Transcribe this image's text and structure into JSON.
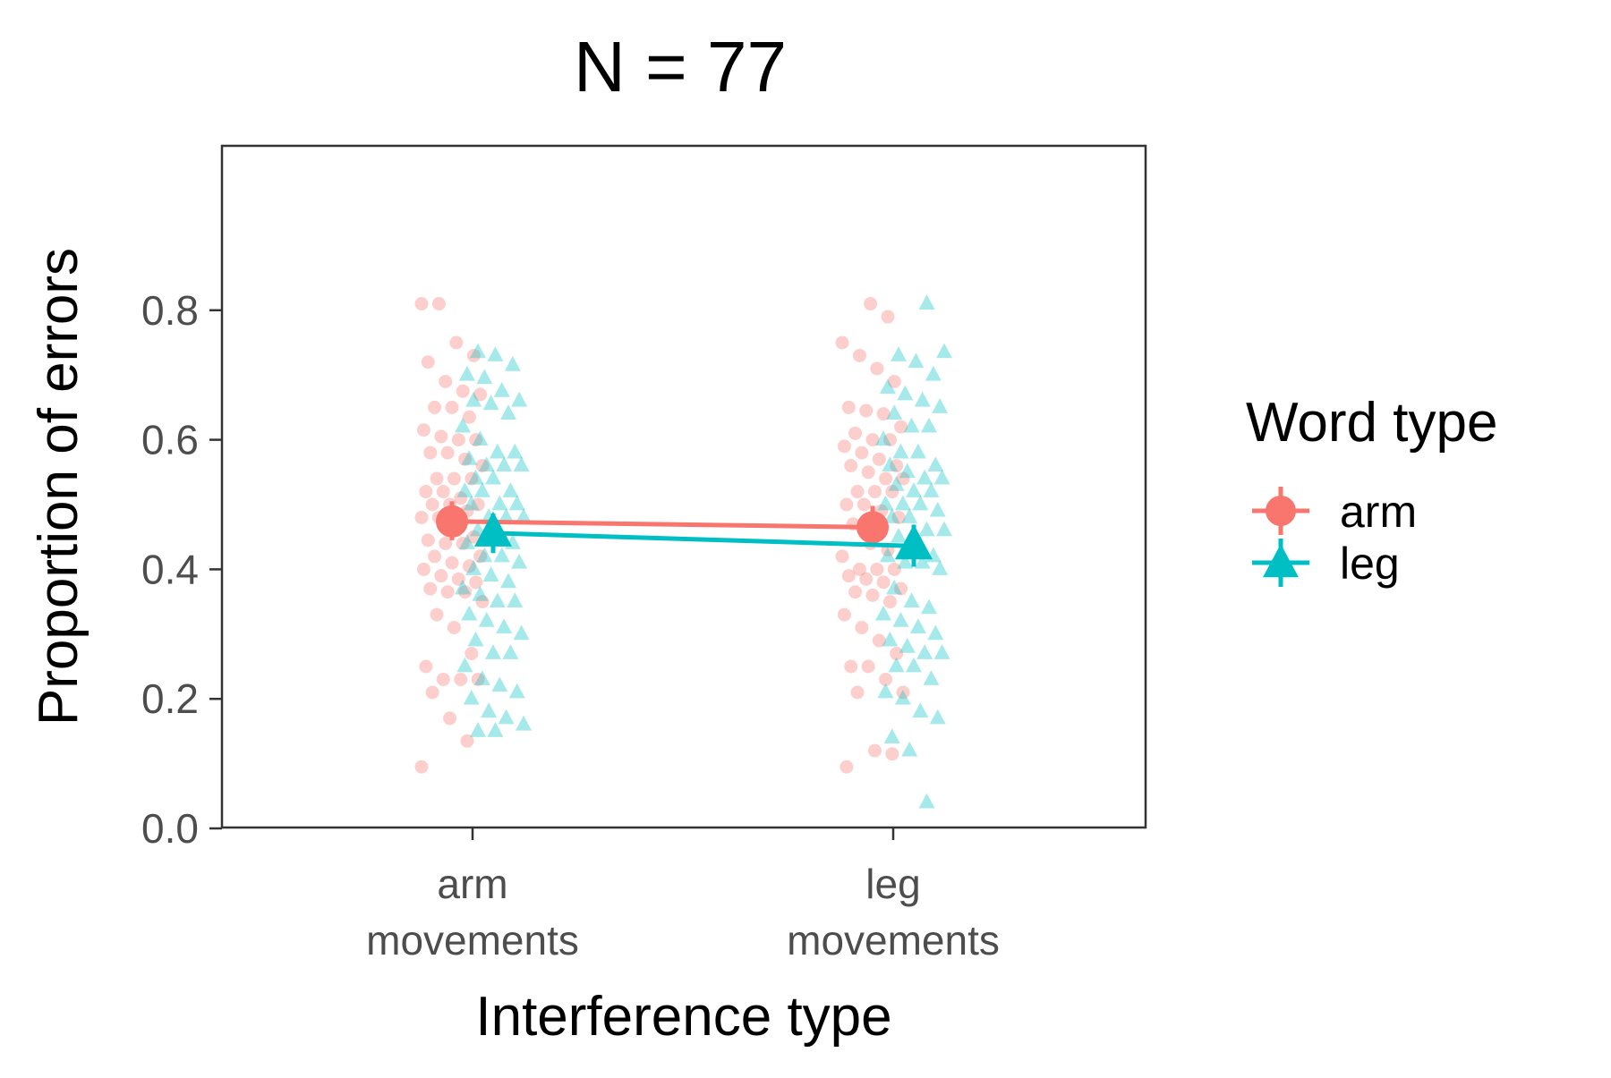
{
  "chart_data": {
    "type": "scatter",
    "title": "N = 77",
    "xlabel": "Interference type",
    "ylabel": "Proportion of errors",
    "categories": [
      [
        "arm",
        "movements"
      ],
      [
        "leg",
        "movements"
      ]
    ],
    "ylim": [
      0.0,
      0.845
    ],
    "yticks": [
      0.0,
      0.2,
      0.4,
      0.6,
      0.8
    ],
    "ytick_labels": [
      "0.0",
      "0.2",
      "0.4",
      "0.6",
      "0.8"
    ],
    "grid": false,
    "legend": {
      "title": "Word type",
      "placement": "right",
      "entries": [
        "arm",
        "leg"
      ]
    },
    "series": [
      {
        "name": "arm",
        "color": "#F8766D",
        "marker": "circle",
        "means": [
          0.474,
          0.465
        ],
        "ci_low": [
          0.445,
          0.436
        ],
        "ci_high": [
          0.505,
          0.498
        ],
        "points": [
          [
            0.81,
            0.81,
            0.75,
            0.73,
            0.72,
            0.69,
            0.675,
            0.67,
            0.65,
            0.65,
            0.635,
            0.615,
            0.605,
            0.6,
            0.6,
            0.58,
            0.58,
            0.57,
            0.56,
            0.54,
            0.54,
            0.54,
            0.52,
            0.52,
            0.51,
            0.5,
            0.5,
            0.5,
            0.49,
            0.48,
            0.48,
            0.46,
            0.45,
            0.445,
            0.44,
            0.44,
            0.42,
            0.42,
            0.41,
            0.405,
            0.4,
            0.39,
            0.385,
            0.38,
            0.37,
            0.365,
            0.365,
            0.35,
            0.33,
            0.31,
            0.27,
            0.25,
            0.23,
            0.23,
            0.23,
            0.21,
            0.17,
            0.135,
            0.095
          ],
          [
            0.81,
            0.79,
            0.75,
            0.73,
            0.71,
            0.69,
            0.65,
            0.645,
            0.64,
            0.62,
            0.61,
            0.6,
            0.6,
            0.59,
            0.58,
            0.57,
            0.56,
            0.56,
            0.55,
            0.54,
            0.54,
            0.52,
            0.52,
            0.52,
            0.5,
            0.5,
            0.49,
            0.48,
            0.47,
            0.44,
            0.43,
            0.42,
            0.4,
            0.4,
            0.4,
            0.39,
            0.385,
            0.38,
            0.37,
            0.365,
            0.36,
            0.35,
            0.33,
            0.31,
            0.29,
            0.27,
            0.25,
            0.25,
            0.23,
            0.21,
            0.21,
            0.12,
            0.115,
            0.095
          ]
        ]
      },
      {
        "name": "leg",
        "color": "#00BFC4",
        "marker": "triangle",
        "means": [
          0.456,
          0.436
        ],
        "ci_low": [
          0.425,
          0.404
        ],
        "ci_high": [
          0.486,
          0.469
        ],
        "points": [
          [
            0.735,
            0.73,
            0.715,
            0.7,
            0.695,
            0.675,
            0.66,
            0.66,
            0.655,
            0.64,
            0.62,
            0.6,
            0.58,
            0.58,
            0.57,
            0.56,
            0.56,
            0.56,
            0.54,
            0.54,
            0.52,
            0.52,
            0.52,
            0.5,
            0.5,
            0.5,
            0.48,
            0.48,
            0.48,
            0.46,
            0.46,
            0.44,
            0.44,
            0.42,
            0.42,
            0.41,
            0.4,
            0.39,
            0.38,
            0.37,
            0.36,
            0.35,
            0.35,
            0.33,
            0.32,
            0.31,
            0.3,
            0.29,
            0.27,
            0.27,
            0.25,
            0.23,
            0.22,
            0.21,
            0.2,
            0.18,
            0.17,
            0.16,
            0.15,
            0.15
          ],
          [
            0.81,
            0.735,
            0.73,
            0.72,
            0.7,
            0.68,
            0.67,
            0.66,
            0.65,
            0.64,
            0.62,
            0.62,
            0.6,
            0.58,
            0.58,
            0.56,
            0.56,
            0.55,
            0.54,
            0.54,
            0.53,
            0.52,
            0.52,
            0.5,
            0.5,
            0.5,
            0.49,
            0.48,
            0.48,
            0.46,
            0.46,
            0.45,
            0.44,
            0.42,
            0.42,
            0.41,
            0.41,
            0.4,
            0.37,
            0.35,
            0.34,
            0.33,
            0.32,
            0.31,
            0.3,
            0.29,
            0.28,
            0.27,
            0.27,
            0.25,
            0.25,
            0.23,
            0.21,
            0.2,
            0.18,
            0.17,
            0.14,
            0.12,
            0.04
          ]
        ]
      }
    ]
  }
}
